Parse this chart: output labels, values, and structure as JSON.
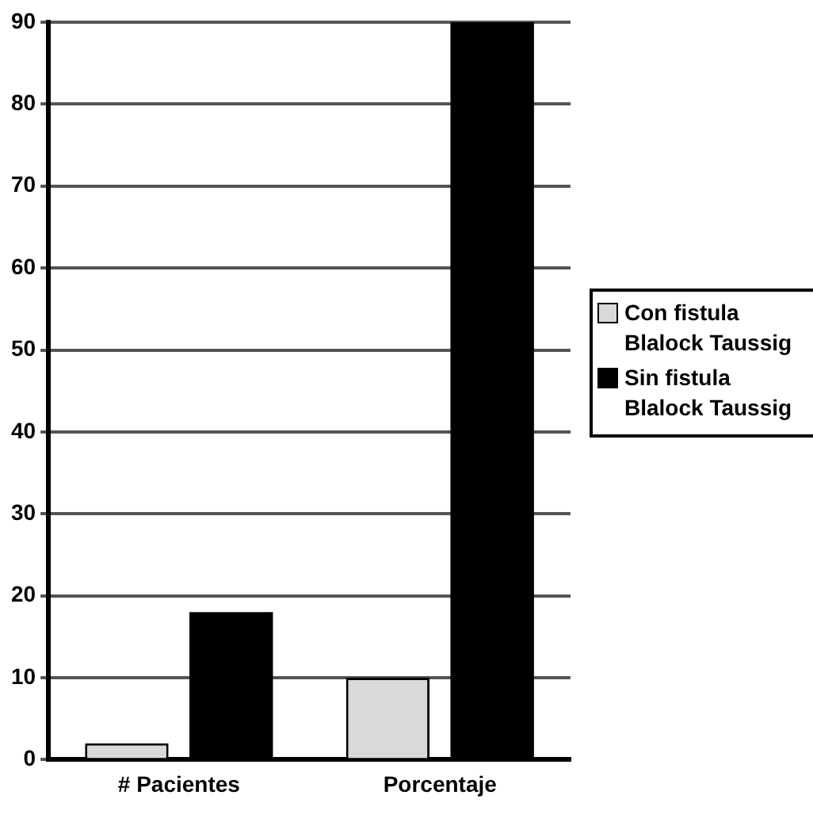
{
  "chart_data": {
    "type": "bar",
    "categories": [
      "# Pacientes",
      "Porcentaje"
    ],
    "series": [
      {
        "name": "Con fistula Blalock Taussig",
        "color": "#d9d9d9",
        "values": [
          2,
          10
        ]
      },
      {
        "name": "Sin fistula Blalock Taussig",
        "color": "#000000",
        "values": [
          18,
          90
        ]
      }
    ],
    "ylim": [
      0,
      90
    ],
    "yticks": [
      0,
      10,
      20,
      30,
      40,
      50,
      60,
      70,
      80,
      90
    ],
    "grid": "y",
    "legend": "right"
  }
}
